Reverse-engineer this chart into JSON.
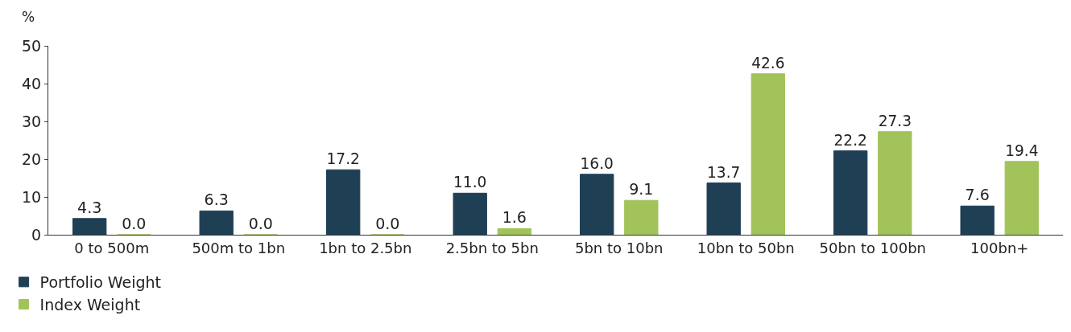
{
  "chart_data": {
    "type": "bar",
    "ylabel": "%",
    "categories": [
      "0 to 500m",
      "500m to 1bn",
      "1bn to 2.5bn",
      "2.5bn to 5bn",
      "5bn to 10bn",
      "10bn to 50bn",
      "50bn to 100bn",
      "100bn+"
    ],
    "series": [
      {
        "name": "Portfolio Weight",
        "color": "#1f3f55",
        "values": [
          4.3,
          6.3,
          17.2,
          11.0,
          16.0,
          13.7,
          22.2,
          7.6
        ],
        "value_labels": [
          "4.3",
          "6.3",
          "17.2",
          "11.0",
          "16.0",
          "13.7",
          "22.2",
          "7.6"
        ]
      },
      {
        "name": "Index Weight",
        "color": "#a2c35a",
        "values": [
          0.0,
          0.0,
          0.0,
          1.6,
          9.1,
          42.6,
          27.3,
          19.4
        ],
        "value_labels": [
          "0.0",
          "0.0",
          "0.0",
          "1.6",
          "9.1",
          "42.6",
          "27.3",
          "19.4"
        ]
      }
    ],
    "ylim": [
      0,
      50
    ],
    "yticks": [
      0,
      10,
      20,
      30,
      40,
      50
    ],
    "legend": "bottom left"
  }
}
